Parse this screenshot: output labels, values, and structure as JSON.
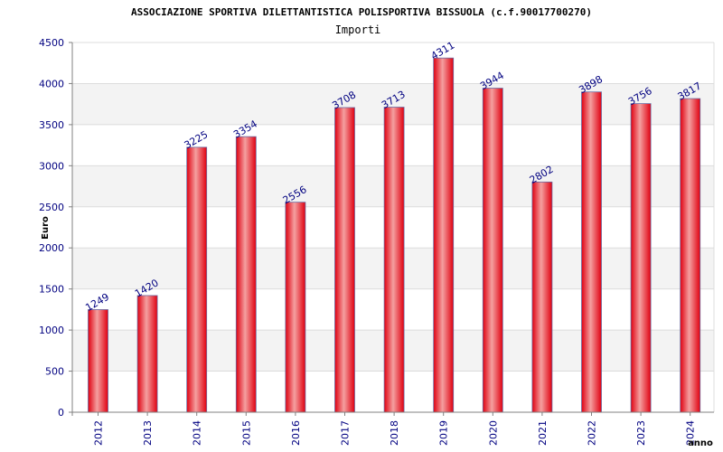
{
  "chart_data": {
    "type": "bar",
    "title": "ASSOCIAZIONE SPORTIVA DILETTANTISTICA POLISPORTIVA BISSUOLA (c.f.90017700270)",
    "subtitle": "Importi",
    "xlabel": "anno",
    "ylabel": "Euro",
    "categories": [
      "2012",
      "2013",
      "2014",
      "2015",
      "2016",
      "2017",
      "2018",
      "2019",
      "2020",
      "2021",
      "2022",
      "2023",
      "2024"
    ],
    "values": [
      1249,
      1420,
      3225,
      3354,
      2556,
      3708,
      3713,
      4311,
      3944,
      2802,
      3898,
      3756,
      3817
    ],
    "data_labels": [
      "1249",
      "1420",
      "3225",
      "3354",
      "2556",
      "3708",
      "3713",
      "4311",
      "3944",
      "2802",
      "3898",
      "3756",
      "3817"
    ],
    "ylim": [
      0,
      4500
    ],
    "yticks": [
      "0",
      "500",
      "1000",
      "1500",
      "2000",
      "2500",
      "3000",
      "3500",
      "4000",
      "4500"
    ],
    "grid": true,
    "colors": {
      "bar_edge": "#e00010",
      "bar_center": "#f4a0a0",
      "bar_outline": "#6a6aa0",
      "label_text": "#000080",
      "band": "#f3f3f3",
      "gridline": "#dcdcdc",
      "axis": "#808080"
    }
  }
}
